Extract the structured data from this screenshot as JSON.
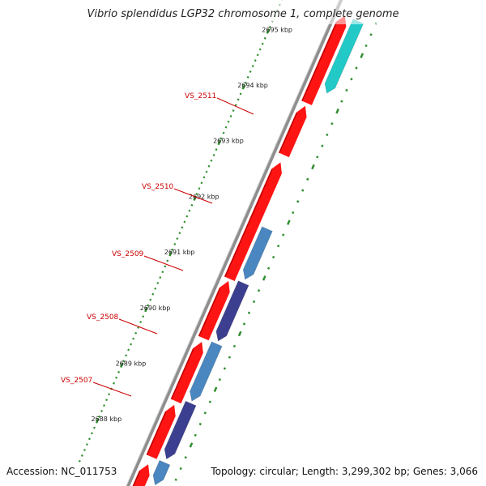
{
  "title": "Vibrio splendidus LGP32 chromosome 1, complete genome",
  "footer": {
    "accession": "Accession: NC_011753",
    "summary": "Topology: circular; Length: 3,299,302 bp; Genes: 3,066"
  },
  "colors": {
    "forward_gene": "#ff1414",
    "reverse_gene_light": "#4a86bf",
    "reverse_gene_dark": "#3c3f8f",
    "reverse_gene_cyan": "#22c9c7",
    "backbone": "#8e8e8e",
    "tick": "#2f8f2f",
    "label": "#cc0000"
  },
  "ticks": [
    {
      "kbp": 2695,
      "label": "2695 kbp"
    },
    {
      "kbp": 2694,
      "label": "2694 kbp"
    },
    {
      "kbp": 2693,
      "label": "2693 kbp"
    },
    {
      "kbp": 2692,
      "label": "2692 kbp"
    },
    {
      "kbp": 2691,
      "label": "2691 kbp"
    },
    {
      "kbp": 2690,
      "label": "2690 kbp"
    },
    {
      "kbp": 2689,
      "label": "2689 kbp"
    },
    {
      "kbp": 2688,
      "label": "2688 kbp"
    }
  ],
  "gene_labels": [
    {
      "name": "VS_2511"
    },
    {
      "name": "VS_2510"
    },
    {
      "name": "VS_2509"
    },
    {
      "name": "VS_2508"
    },
    {
      "name": "VS_2507"
    }
  ]
}
